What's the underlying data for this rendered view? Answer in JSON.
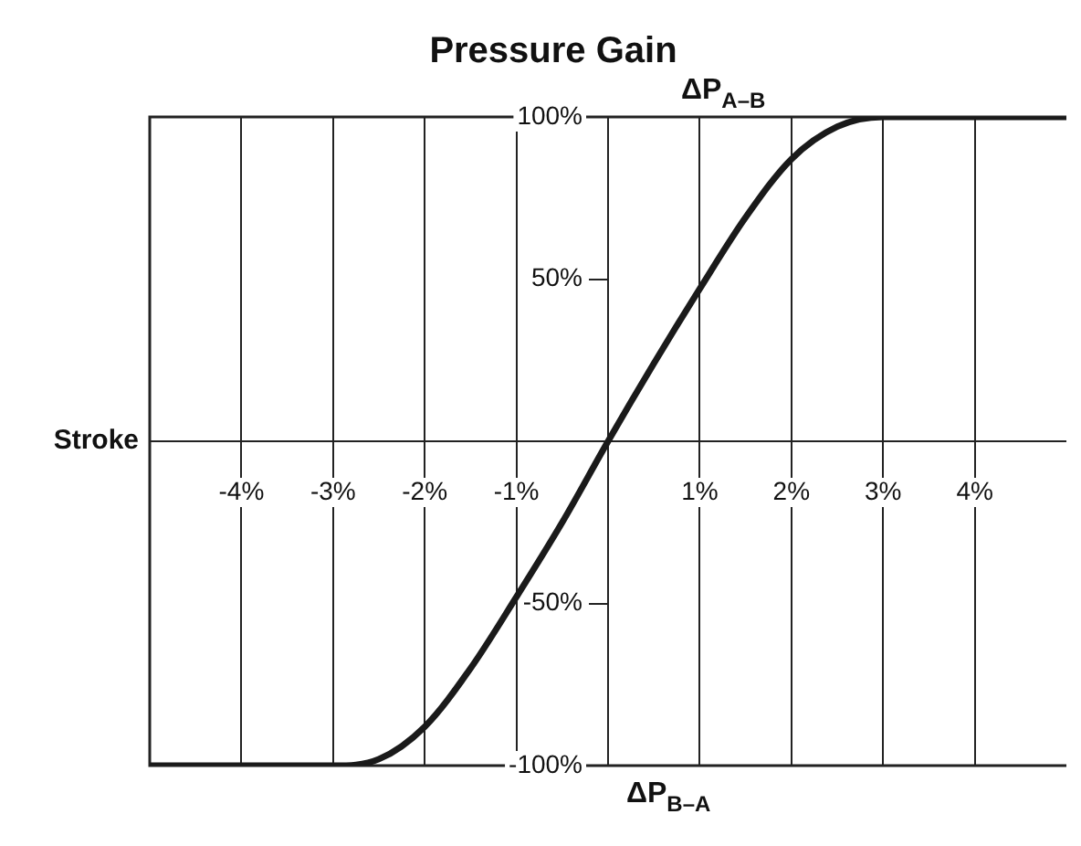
{
  "chart_data": {
    "type": "line",
    "title": "Pressure Gain",
    "xlabel": "Stroke",
    "ylabel": "ΔP$_{A–B}$",
    "annotations": [
      "ΔP$_{B–A}$"
    ],
    "x": [
      -5,
      -4,
      -3,
      -2.5,
      -2,
      -1.5,
      -1,
      -0.5,
      0,
      0.5,
      1,
      1.5,
      2,
      2.5,
      3,
      4,
      5
    ],
    "series": [
      {
        "color": "#1a1a1a",
        "values": [
          -100,
          -100,
          -100,
          -98,
          -88,
          -70,
          -48,
          -25,
          0,
          24,
          47,
          69,
          87,
          97,
          100,
          100,
          100
        ]
      }
    ],
    "xlim": [
      -5,
      5
    ],
    "ylim": [
      -100,
      100
    ],
    "xticks": [
      {
        "value": -4,
        "label": "-4%"
      },
      {
        "value": -3,
        "label": "-3%"
      },
      {
        "value": -2,
        "label": "-2%"
      },
      {
        "value": -1,
        "label": "-1%"
      },
      {
        "value": 1,
        "label": "1%"
      },
      {
        "value": 2,
        "label": "2%"
      },
      {
        "value": 3,
        "label": "3%"
      },
      {
        "value": 4,
        "label": "4%"
      }
    ],
    "yticks": [
      {
        "value": -100,
        "label": "-100%"
      },
      {
        "value": -50,
        "label": "-50%"
      },
      {
        "value": 50,
        "label": "50%"
      },
      {
        "value": 100,
        "label": "100%"
      }
    ],
    "grid": "x",
    "legend": false,
    "marker": "none",
    "line_style": "solid"
  }
}
